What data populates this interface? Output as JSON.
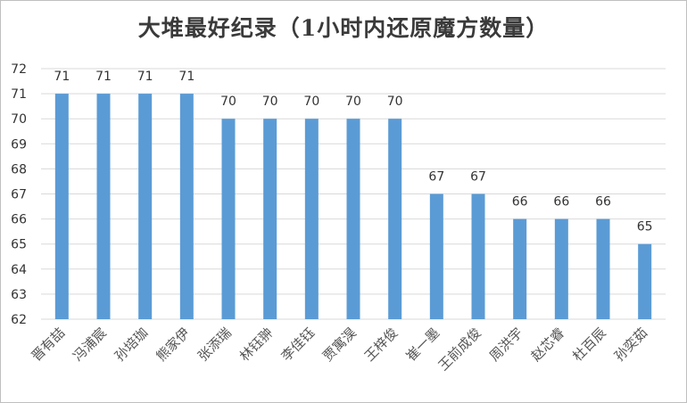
{
  "chart_data": {
    "type": "bar",
    "title": "大堆最好纪录（1小时内还原魔方数量）",
    "xlabel": "",
    "ylabel": "",
    "ylim": [
      62,
      72
    ],
    "yticks": [
      62,
      63,
      64,
      65,
      66,
      67,
      68,
      69,
      70,
      71,
      72
    ],
    "grid": true,
    "legend": "none",
    "bar_color": "#5b9bd5",
    "categories": [
      "晋有喆",
      "冯浦宸",
      "孙培珈",
      "熊家伊",
      "张添瑞",
      "林钰翀",
      "李佳钰",
      "贾寓淏",
      "王梓俊",
      "崔一墨",
      "王前成俊",
      "周洪宇",
      "赵芯睿",
      "杜百辰",
      "孙奕茹"
    ],
    "values": [
      71,
      71,
      71,
      71,
      70,
      70,
      70,
      70,
      70,
      67,
      67,
      66,
      66,
      66,
      65
    ]
  }
}
